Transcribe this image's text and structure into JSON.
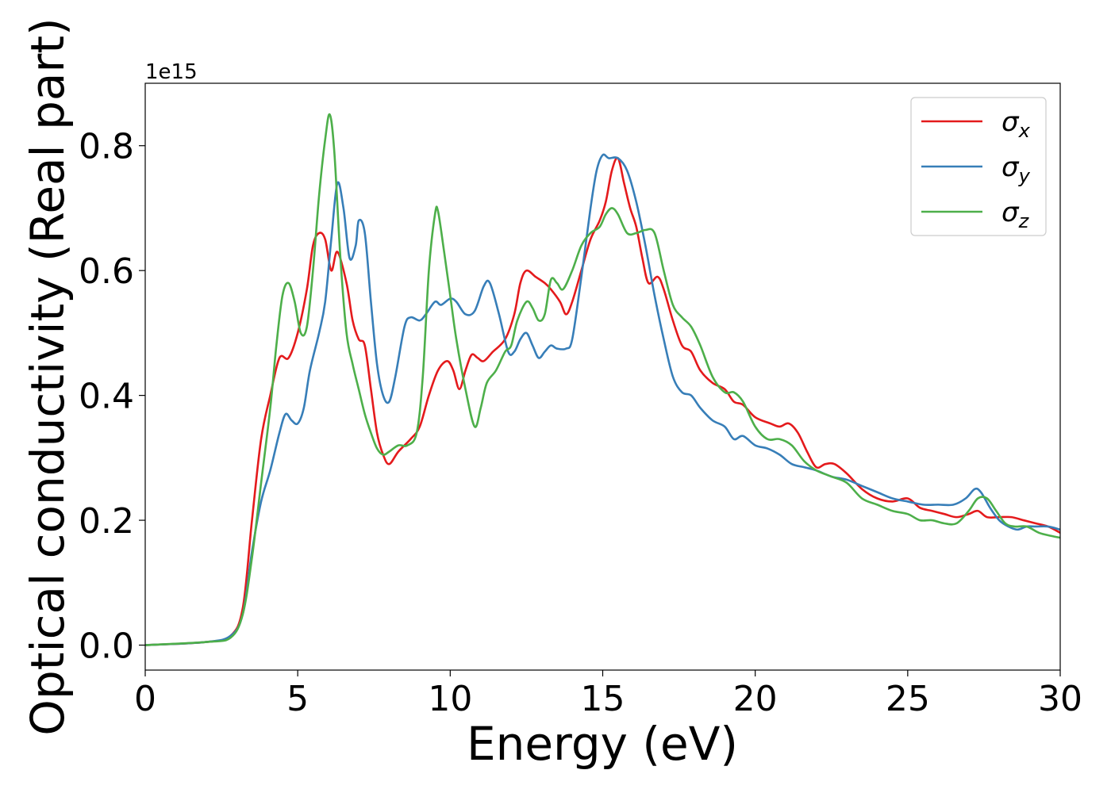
{
  "chart_data": {
    "type": "line",
    "xlabel": "Energy (eV)",
    "ylabel": "Optical conductivity (Real part)",
    "offset_text": "1e15",
    "xlim": [
      0,
      30
    ],
    "ylim": [
      -0.04,
      0.9
    ],
    "xticks": [
      0,
      5,
      10,
      15,
      20,
      25,
      30
    ],
    "yticks": [
      0.0,
      0.2,
      0.4,
      0.6,
      0.8
    ],
    "ytick_labels": [
      "0.0",
      "0.2",
      "0.4",
      "0.6",
      "0.8"
    ],
    "legend_position": "upper right",
    "grid": false,
    "series": [
      {
        "name": "σx",
        "symbol": "σ",
        "subscript": "x",
        "color": "#e41a1c",
        "points": [
          [
            0,
            0
          ],
          [
            2,
            0.005
          ],
          [
            2.8,
            0.015
          ],
          [
            3.2,
            0.06
          ],
          [
            3.5,
            0.2
          ],
          [
            3.8,
            0.33
          ],
          [
            4.1,
            0.4
          ],
          [
            4.4,
            0.46
          ],
          [
            4.7,
            0.46
          ],
          [
            5.0,
            0.5
          ],
          [
            5.3,
            0.57
          ],
          [
            5.5,
            0.64
          ],
          [
            5.7,
            0.66
          ],
          [
            5.9,
            0.65
          ],
          [
            6.1,
            0.6
          ],
          [
            6.3,
            0.63
          ],
          [
            6.6,
            0.58
          ],
          [
            6.8,
            0.52
          ],
          [
            7.0,
            0.49
          ],
          [
            7.2,
            0.48
          ],
          [
            7.4,
            0.41
          ],
          [
            7.6,
            0.34
          ],
          [
            7.8,
            0.305
          ],
          [
            8.0,
            0.29
          ],
          [
            8.3,
            0.31
          ],
          [
            8.7,
            0.33
          ],
          [
            9.0,
            0.35
          ],
          [
            9.3,
            0.4
          ],
          [
            9.6,
            0.44
          ],
          [
            9.9,
            0.455
          ],
          [
            10.1,
            0.44
          ],
          [
            10.3,
            0.41
          ],
          [
            10.5,
            0.44
          ],
          [
            10.7,
            0.465
          ],
          [
            10.9,
            0.46
          ],
          [
            11.1,
            0.455
          ],
          [
            11.4,
            0.47
          ],
          [
            11.8,
            0.49
          ],
          [
            12.1,
            0.53
          ],
          [
            12.3,
            0.58
          ],
          [
            12.5,
            0.6
          ],
          [
            12.8,
            0.59
          ],
          [
            13.1,
            0.58
          ],
          [
            13.3,
            0.57
          ],
          [
            13.6,
            0.55
          ],
          [
            13.8,
            0.53
          ],
          [
            14.0,
            0.55
          ],
          [
            14.3,
            0.6
          ],
          [
            14.6,
            0.65
          ],
          [
            14.9,
            0.68
          ],
          [
            15.1,
            0.71
          ],
          [
            15.3,
            0.76
          ],
          [
            15.5,
            0.78
          ],
          [
            15.7,
            0.74
          ],
          [
            15.9,
            0.7
          ],
          [
            16.1,
            0.67
          ],
          [
            16.3,
            0.62
          ],
          [
            16.5,
            0.58
          ],
          [
            16.8,
            0.59
          ],
          [
            17.0,
            0.57
          ],
          [
            17.3,
            0.52
          ],
          [
            17.6,
            0.48
          ],
          [
            17.9,
            0.47
          ],
          [
            18.2,
            0.44
          ],
          [
            18.6,
            0.42
          ],
          [
            19.0,
            0.41
          ],
          [
            19.3,
            0.39
          ],
          [
            19.6,
            0.385
          ],
          [
            20.0,
            0.365
          ],
          [
            20.5,
            0.355
          ],
          [
            20.8,
            0.35
          ],
          [
            21.1,
            0.355
          ],
          [
            21.4,
            0.34
          ],
          [
            21.7,
            0.31
          ],
          [
            22.0,
            0.285
          ],
          [
            22.3,
            0.29
          ],
          [
            22.6,
            0.29
          ],
          [
            23.0,
            0.275
          ],
          [
            23.5,
            0.25
          ],
          [
            24.0,
            0.235
          ],
          [
            24.5,
            0.23
          ],
          [
            25.0,
            0.235
          ],
          [
            25.4,
            0.22
          ],
          [
            25.8,
            0.215
          ],
          [
            26.2,
            0.21
          ],
          [
            26.6,
            0.205
          ],
          [
            27.0,
            0.21
          ],
          [
            27.3,
            0.215
          ],
          [
            27.6,
            0.205
          ],
          [
            28.0,
            0.205
          ],
          [
            28.4,
            0.205
          ],
          [
            28.8,
            0.2
          ],
          [
            29.2,
            0.195
          ],
          [
            29.6,
            0.19
          ],
          [
            30.0,
            0.18
          ]
        ]
      },
      {
        "name": "σy",
        "symbol": "σ",
        "subscript": "y",
        "color": "#377eb8",
        "points": [
          [
            0,
            0
          ],
          [
            2,
            0.005
          ],
          [
            2.8,
            0.015
          ],
          [
            3.2,
            0.05
          ],
          [
            3.5,
            0.15
          ],
          [
            3.8,
            0.23
          ],
          [
            4.1,
            0.28
          ],
          [
            4.4,
            0.34
          ],
          [
            4.6,
            0.37
          ],
          [
            4.8,
            0.36
          ],
          [
            5.0,
            0.355
          ],
          [
            5.2,
            0.38
          ],
          [
            5.4,
            0.44
          ],
          [
            5.7,
            0.5
          ],
          [
            5.9,
            0.55
          ],
          [
            6.1,
            0.65
          ],
          [
            6.3,
            0.74
          ],
          [
            6.5,
            0.7
          ],
          [
            6.7,
            0.62
          ],
          [
            6.9,
            0.64
          ],
          [
            7.0,
            0.68
          ],
          [
            7.2,
            0.66
          ],
          [
            7.4,
            0.55
          ],
          [
            7.6,
            0.45
          ],
          [
            7.8,
            0.4
          ],
          [
            8.0,
            0.39
          ],
          [
            8.2,
            0.43
          ],
          [
            8.5,
            0.51
          ],
          [
            8.7,
            0.525
          ],
          [
            9.0,
            0.52
          ],
          [
            9.2,
            0.53
          ],
          [
            9.5,
            0.55
          ],
          [
            9.7,
            0.545
          ],
          [
            10.0,
            0.555
          ],
          [
            10.2,
            0.55
          ],
          [
            10.5,
            0.53
          ],
          [
            10.8,
            0.535
          ],
          [
            11.1,
            0.575
          ],
          [
            11.3,
            0.58
          ],
          [
            11.6,
            0.53
          ],
          [
            11.9,
            0.47
          ],
          [
            12.1,
            0.47
          ],
          [
            12.3,
            0.49
          ],
          [
            12.5,
            0.5
          ],
          [
            12.7,
            0.48
          ],
          [
            12.9,
            0.46
          ],
          [
            13.1,
            0.47
          ],
          [
            13.3,
            0.48
          ],
          [
            13.5,
            0.475
          ],
          [
            13.8,
            0.475
          ],
          [
            14.0,
            0.49
          ],
          [
            14.3,
            0.59
          ],
          [
            14.6,
            0.7
          ],
          [
            14.8,
            0.76
          ],
          [
            15.0,
            0.785
          ],
          [
            15.2,
            0.78
          ],
          [
            15.5,
            0.78
          ],
          [
            15.8,
            0.76
          ],
          [
            16.1,
            0.71
          ],
          [
            16.4,
            0.64
          ],
          [
            16.7,
            0.56
          ],
          [
            17.0,
            0.49
          ],
          [
            17.3,
            0.43
          ],
          [
            17.6,
            0.405
          ],
          [
            17.9,
            0.4
          ],
          [
            18.2,
            0.38
          ],
          [
            18.6,
            0.36
          ],
          [
            19.0,
            0.35
          ],
          [
            19.3,
            0.33
          ],
          [
            19.6,
            0.335
          ],
          [
            20.0,
            0.32
          ],
          [
            20.4,
            0.315
          ],
          [
            20.8,
            0.305
          ],
          [
            21.2,
            0.29
          ],
          [
            21.6,
            0.285
          ],
          [
            22.0,
            0.28
          ],
          [
            22.5,
            0.27
          ],
          [
            23.0,
            0.265
          ],
          [
            23.5,
            0.255
          ],
          [
            24.0,
            0.245
          ],
          [
            24.5,
            0.235
          ],
          [
            25.0,
            0.23
          ],
          [
            25.5,
            0.225
          ],
          [
            26.0,
            0.225
          ],
          [
            26.5,
            0.225
          ],
          [
            26.9,
            0.235
          ],
          [
            27.2,
            0.25
          ],
          [
            27.4,
            0.245
          ],
          [
            27.7,
            0.22
          ],
          [
            28.0,
            0.2
          ],
          [
            28.3,
            0.19
          ],
          [
            28.6,
            0.185
          ],
          [
            28.9,
            0.19
          ],
          [
            29.2,
            0.19
          ],
          [
            29.6,
            0.19
          ],
          [
            30.0,
            0.185
          ]
        ]
      },
      {
        "name": "σz",
        "symbol": "σ",
        "subscript": "z",
        "color": "#4daf4a",
        "points": [
          [
            0,
            0
          ],
          [
            2,
            0.005
          ],
          [
            2.8,
            0.012
          ],
          [
            3.2,
            0.05
          ],
          [
            3.5,
            0.14
          ],
          [
            3.8,
            0.26
          ],
          [
            4.1,
            0.38
          ],
          [
            4.3,
            0.48
          ],
          [
            4.5,
            0.56
          ],
          [
            4.7,
            0.58
          ],
          [
            4.9,
            0.55
          ],
          [
            5.1,
            0.5
          ],
          [
            5.3,
            0.51
          ],
          [
            5.5,
            0.6
          ],
          [
            5.7,
            0.72
          ],
          [
            5.9,
            0.81
          ],
          [
            6.05,
            0.85
          ],
          [
            6.2,
            0.79
          ],
          [
            6.4,
            0.62
          ],
          [
            6.6,
            0.5
          ],
          [
            6.8,
            0.45
          ],
          [
            7.0,
            0.41
          ],
          [
            7.2,
            0.37
          ],
          [
            7.4,
            0.34
          ],
          [
            7.6,
            0.315
          ],
          [
            7.8,
            0.305
          ],
          [
            8.0,
            0.31
          ],
          [
            8.3,
            0.32
          ],
          [
            8.6,
            0.32
          ],
          [
            8.9,
            0.34
          ],
          [
            9.1,
            0.43
          ],
          [
            9.3,
            0.6
          ],
          [
            9.5,
            0.69
          ],
          [
            9.6,
            0.695
          ],
          [
            9.8,
            0.63
          ],
          [
            10.0,
            0.56
          ],
          [
            10.2,
            0.49
          ],
          [
            10.5,
            0.41
          ],
          [
            10.8,
            0.35
          ],
          [
            11.0,
            0.38
          ],
          [
            11.2,
            0.42
          ],
          [
            11.5,
            0.44
          ],
          [
            11.8,
            0.47
          ],
          [
            12.0,
            0.48
          ],
          [
            12.2,
            0.52
          ],
          [
            12.5,
            0.55
          ],
          [
            12.7,
            0.54
          ],
          [
            12.9,
            0.52
          ],
          [
            13.1,
            0.53
          ],
          [
            13.3,
            0.585
          ],
          [
            13.5,
            0.58
          ],
          [
            13.7,
            0.57
          ],
          [
            14.0,
            0.6
          ],
          [
            14.3,
            0.64
          ],
          [
            14.6,
            0.66
          ],
          [
            14.9,
            0.67
          ],
          [
            15.1,
            0.69
          ],
          [
            15.3,
            0.7
          ],
          [
            15.5,
            0.69
          ],
          [
            15.8,
            0.66
          ],
          [
            16.1,
            0.66
          ],
          [
            16.4,
            0.665
          ],
          [
            16.7,
            0.66
          ],
          [
            17.0,
            0.6
          ],
          [
            17.3,
            0.545
          ],
          [
            17.6,
            0.525
          ],
          [
            17.9,
            0.51
          ],
          [
            18.2,
            0.48
          ],
          [
            18.6,
            0.43
          ],
          [
            19.0,
            0.405
          ],
          [
            19.3,
            0.405
          ],
          [
            19.6,
            0.39
          ],
          [
            20.0,
            0.35
          ],
          [
            20.4,
            0.33
          ],
          [
            20.8,
            0.33
          ],
          [
            21.2,
            0.32
          ],
          [
            21.6,
            0.295
          ],
          [
            22.0,
            0.28
          ],
          [
            22.5,
            0.27
          ],
          [
            23.0,
            0.26
          ],
          [
            23.5,
            0.235
          ],
          [
            24.0,
            0.225
          ],
          [
            24.5,
            0.215
          ],
          [
            25.0,
            0.21
          ],
          [
            25.4,
            0.2
          ],
          [
            25.8,
            0.2
          ],
          [
            26.2,
            0.195
          ],
          [
            26.6,
            0.195
          ],
          [
            27.0,
            0.215
          ],
          [
            27.3,
            0.235
          ],
          [
            27.6,
            0.235
          ],
          [
            27.9,
            0.215
          ],
          [
            28.2,
            0.195
          ],
          [
            28.5,
            0.19
          ],
          [
            28.9,
            0.19
          ],
          [
            29.3,
            0.18
          ],
          [
            29.7,
            0.175
          ],
          [
            30.0,
            0.172
          ]
        ]
      }
    ]
  }
}
